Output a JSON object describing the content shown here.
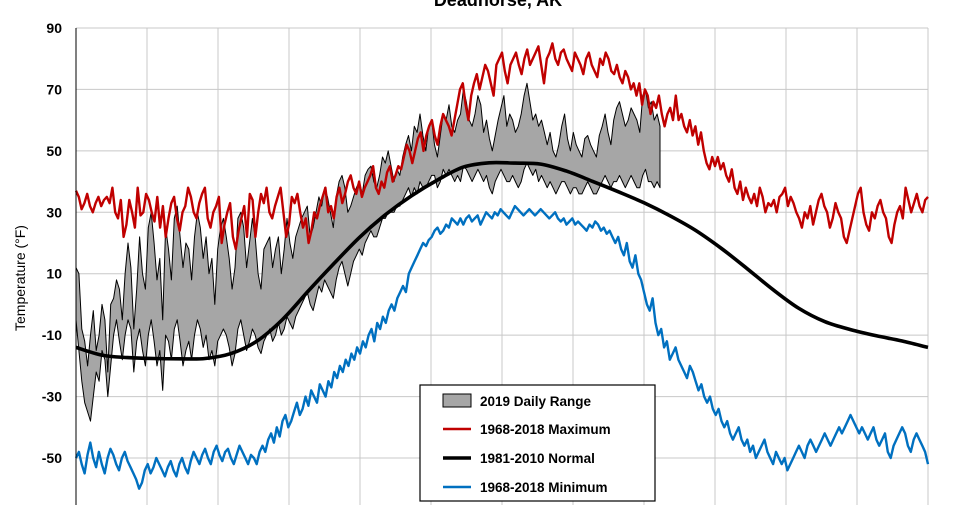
{
  "chart_data": {
    "type": "line",
    "title": "Deadhorse, AK",
    "xlabel": "",
    "ylabel": "Temperature (°F)",
    "ylim": [
      -60,
      90
    ],
    "yticks": [
      90,
      70,
      50,
      30,
      10,
      -10,
      -30,
      -50
    ],
    "grid": true,
    "legend_position": "bottom-center",
    "series": [
      {
        "name": "2019 Daily Range",
        "style": "band",
        "color": "#a6a6a6",
        "upper": [
          12,
          10,
          -8,
          -12,
          -20,
          -10,
          -2,
          -15,
          -10,
          0,
          -5,
          -22,
          0,
          2,
          8,
          5,
          -5,
          10,
          20,
          12,
          -8,
          5,
          22,
          10,
          5,
          25,
          30,
          20,
          8,
          15,
          -5,
          25,
          18,
          8,
          28,
          32,
          22,
          12,
          20,
          18,
          8,
          22,
          30,
          25,
          15,
          22,
          10,
          15,
          0,
          18,
          25,
          28,
          22,
          15,
          5,
          12,
          28,
          30,
          25,
          12,
          20,
          28,
          22,
          10,
          5,
          18,
          20,
          22,
          12,
          18,
          22,
          10,
          18,
          28,
          20,
          15,
          22,
          25,
          28,
          30,
          32,
          22,
          25,
          30,
          35,
          32,
          38,
          35,
          30,
          25,
          35,
          40,
          42,
          38,
          30,
          32,
          35,
          38,
          40,
          36,
          42,
          44,
          45,
          40,
          38,
          42,
          48,
          46,
          50,
          45,
          40,
          44,
          42,
          48,
          52,
          55,
          50,
          58,
          56,
          62,
          55,
          50,
          58,
          60,
          52,
          48,
          55,
          62,
          60,
          65,
          58,
          56,
          60,
          62,
          70,
          66,
          60,
          58,
          62,
          68,
          65,
          56,
          60,
          54,
          50,
          55,
          60,
          64,
          68,
          58,
          62,
          60,
          56,
          58,
          62,
          68,
          72,
          66,
          60,
          62,
          58,
          60,
          56,
          52,
          56,
          50,
          48,
          52,
          58,
          62,
          54,
          50,
          56,
          52,
          50,
          48,
          54,
          55,
          52,
          50,
          48,
          55,
          58,
          62,
          56,
          52,
          60,
          64,
          66,
          62,
          58,
          60,
          64,
          62,
          60,
          56,
          68,
          70,
          64,
          66,
          60,
          62,
          58
        ],
        "lower": [
          -5,
          -15,
          -25,
          -32,
          -35,
          -38,
          -30,
          -22,
          -25,
          -15,
          -18,
          -30,
          -20,
          -10,
          -5,
          -12,
          -18,
          -10,
          -5,
          -8,
          -22,
          -12,
          -8,
          -15,
          -20,
          -10,
          -5,
          -12,
          -20,
          -15,
          -28,
          -10,
          -12,
          -18,
          -8,
          -5,
          -12,
          -20,
          -15,
          -12,
          -18,
          -10,
          -5,
          -8,
          -14,
          -10,
          -18,
          -15,
          -20,
          -12,
          -10,
          -8,
          -10,
          -14,
          -20,
          -16,
          -8,
          -5,
          -10,
          -15,
          -12,
          -8,
          -10,
          -14,
          -16,
          -12,
          -10,
          -8,
          -12,
          -10,
          -6,
          -10,
          -8,
          -4,
          -6,
          -8,
          -4,
          -2,
          0,
          2,
          4,
          0,
          -2,
          2,
          6,
          4,
          8,
          6,
          4,
          2,
          8,
          12,
          14,
          10,
          6,
          10,
          14,
          16,
          18,
          16,
          20,
          22,
          24,
          22,
          22,
          25,
          28,
          28,
          30,
          30,
          30,
          32,
          32,
          34,
          36,
          38,
          35,
          38,
          36,
          40,
          38,
          38,
          40,
          42,
          42,
          38,
          40,
          44,
          42,
          44,
          42,
          40,
          42,
          40,
          45,
          44,
          42,
          40,
          42,
          44,
          42,
          40,
          42,
          38,
          36,
          40,
          42,
          44,
          42,
          40,
          40,
          42,
          40,
          38,
          40,
          44,
          46,
          44,
          42,
          44,
          40,
          42,
          40,
          38,
          40,
          38,
          36,
          38,
          40,
          40,
          38,
          36,
          38,
          38,
          36,
          36,
          38,
          40,
          38,
          36,
          36,
          38,
          40,
          42,
          40,
          38,
          40,
          40,
          42,
          40,
          38,
          40,
          42,
          40,
          38,
          38,
          42,
          44,
          40,
          40,
          38,
          40,
          38
        ]
      },
      {
        "name": "1968-2018 Maximum",
        "style": "line",
        "color": "#c00000",
        "values": [
          37,
          35,
          31,
          33,
          36,
          32,
          30,
          33,
          35,
          32,
          34,
          35,
          33,
          38,
          30,
          28,
          34,
          22,
          26,
          34,
          30,
          25,
          38,
          29,
          30,
          36,
          34,
          30,
          27,
          35,
          25,
          32,
          22,
          28,
          33,
          35,
          28,
          24,
          30,
          32,
          38,
          35,
          30,
          28,
          33,
          36,
          38,
          28,
          25,
          30,
          32,
          35,
          20,
          26,
          30,
          33,
          22,
          18,
          24,
          28,
          32,
          22,
          36,
          34,
          22,
          30,
          36,
          33,
          38,
          30,
          28,
          32,
          35,
          38,
          30,
          22,
          26,
          35,
          33,
          36,
          30,
          25,
          28,
          20,
          24,
          30,
          28,
          32,
          35,
          38,
          30,
          32,
          28,
          35,
          38,
          33,
          36,
          40,
          42,
          38,
          36,
          40,
          35,
          38,
          40,
          42,
          45,
          38,
          36,
          40,
          38,
          43,
          45,
          40,
          42,
          45,
          44,
          48,
          52,
          50,
          46,
          50,
          54,
          56,
          50,
          55,
          58,
          60,
          55,
          52,
          58,
          62,
          60,
          58,
          55,
          60,
          65,
          70,
          72,
          65,
          60,
          68,
          72,
          75,
          70,
          74,
          78,
          76,
          72,
          68,
          78,
          80,
          82,
          76,
          72,
          78,
          80,
          82,
          78,
          75,
          80,
          83,
          78,
          80,
          82,
          84,
          78,
          72,
          80,
          82,
          85,
          80,
          78,
          82,
          83,
          80,
          78,
          76,
          82,
          80,
          78,
          75,
          80,
          82,
          78,
          76,
          74,
          80,
          78,
          82,
          80,
          76,
          75,
          78,
          74,
          72,
          76,
          74,
          70,
          72,
          68,
          72,
          65,
          70,
          68,
          62,
          66,
          64,
          68,
          62,
          58,
          62,
          64,
          60,
          68,
          60,
          62,
          58,
          56,
          60,
          55,
          58,
          52,
          56,
          50,
          46,
          44,
          48,
          45,
          48,
          44,
          46,
          42,
          40,
          44,
          38,
          36,
          40,
          34,
          38,
          35,
          33,
          36,
          32,
          38,
          35,
          30,
          33,
          32,
          34,
          30,
          35,
          36,
          38,
          32,
          35,
          33,
          30,
          28,
          25,
          30,
          28,
          32,
          26,
          30,
          34,
          36,
          32,
          30,
          25,
          28,
          33,
          30,
          28,
          22,
          20,
          24,
          28,
          32,
          36,
          38,
          30,
          26,
          24,
          30,
          28,
          32,
          34,
          30,
          28,
          22,
          20,
          26,
          30,
          32,
          28,
          38,
          34,
          30,
          33,
          36,
          32,
          30,
          34,
          35
        ]
      },
      {
        "name": "1981-2010 Normal",
        "style": "line",
        "color": "#000000",
        "values": [
          -14,
          -16.5,
          -17.3,
          -17.6,
          -17.7,
          -17.6,
          -16,
          -12,
          -4.9,
          4.4,
          13.4,
          22,
          29.3,
          35.4,
          40.5,
          44.7,
          46.1,
          46,
          45.7,
          43.4,
          40.1,
          36.7,
          33.1,
          28.9,
          24.1,
          18.2,
          11.6,
          4.8,
          -1.3,
          -5.6,
          -8.2,
          -10.2,
          -11.9,
          -14
        ]
      },
      {
        "name": "1968-2018 Minimum",
        "style": "line",
        "color": "#0070c0",
        "values": [
          -50,
          -48,
          -52,
          -55,
          -49,
          -45,
          -50,
          -53,
          -48,
          -52,
          -55,
          -50,
          -47,
          -49,
          -52,
          -54,
          -50,
          -48,
          -51,
          -53,
          -55,
          -57,
          -60,
          -58,
          -54,
          -52,
          -55,
          -53,
          -50,
          -52,
          -54,
          -56,
          -53,
          -51,
          -54,
          -56,
          -52,
          -50,
          -53,
          -55,
          -51,
          -48,
          -50,
          -52,
          -49,
          -47,
          -50,
          -52,
          -48,
          -46,
          -49,
          -51,
          -48,
          -47,
          -50,
          -52,
          -49,
          -46,
          -48,
          -50,
          -52,
          -49,
          -50,
          -52,
          -48,
          -46,
          -48,
          -44,
          -42,
          -45,
          -40,
          -43,
          -38,
          -36,
          -40,
          -38,
          -35,
          -32,
          -36,
          -34,
          -30,
          -33,
          -28,
          -30,
          -32,
          -26,
          -28,
          -30,
          -25,
          -27,
          -22,
          -24,
          -20,
          -22,
          -18,
          -20,
          -16,
          -18,
          -14,
          -16,
          -12,
          -14,
          -10,
          -8,
          -12,
          -6,
          -8,
          -4,
          -6,
          -2,
          0,
          -2,
          2,
          4,
          6,
          4,
          10,
          12,
          14,
          16,
          18,
          20,
          19,
          21,
          22,
          24,
          25,
          23,
          24,
          26,
          25,
          28,
          27,
          26,
          28,
          26,
          28,
          29,
          27,
          28,
          29,
          26,
          28,
          30,
          29,
          28,
          30,
          29,
          31,
          30,
          29,
          28,
          30,
          32,
          31,
          30,
          29,
          30,
          31,
          30,
          29,
          30,
          31,
          30,
          29,
          28,
          29,
          30,
          28,
          27,
          28,
          26,
          27,
          28,
          26,
          27,
          26,
          25,
          24,
          26,
          25,
          27,
          26,
          24,
          25,
          23,
          24,
          22,
          20,
          22,
          18,
          16,
          20,
          14,
          12,
          16,
          10,
          8,
          4,
          0,
          -2,
          2,
          -6,
          -10,
          -8,
          -14,
          -12,
          -18,
          -16,
          -14,
          -18,
          -20,
          -22,
          -24,
          -20,
          -22,
          -25,
          -28,
          -26,
          -30,
          -32,
          -30,
          -34,
          -36,
          -34,
          -38,
          -40,
          -38,
          -42,
          -44,
          -42,
          -40,
          -44,
          -46,
          -44,
          -48,
          -46,
          -50,
          -48,
          -46,
          -44,
          -48,
          -50,
          -52,
          -48,
          -50,
          -52,
          -50,
          -54,
          -52,
          -50,
          -48,
          -46,
          -48,
          -50,
          -46,
          -44,
          -46,
          -48,
          -46,
          -44,
          -42,
          -44,
          -46,
          -44,
          -42,
          -40,
          -42,
          -40,
          -38,
          -36,
          -38,
          -40,
          -42,
          -40,
          -42,
          -44,
          -42,
          -40,
          -44,
          -46,
          -44,
          -42,
          -48,
          -50,
          -46,
          -44,
          -42,
          -40,
          -42,
          -46,
          -48,
          -44,
          -42,
          -44,
          -46,
          -48,
          -52
        ]
      }
    ]
  }
}
